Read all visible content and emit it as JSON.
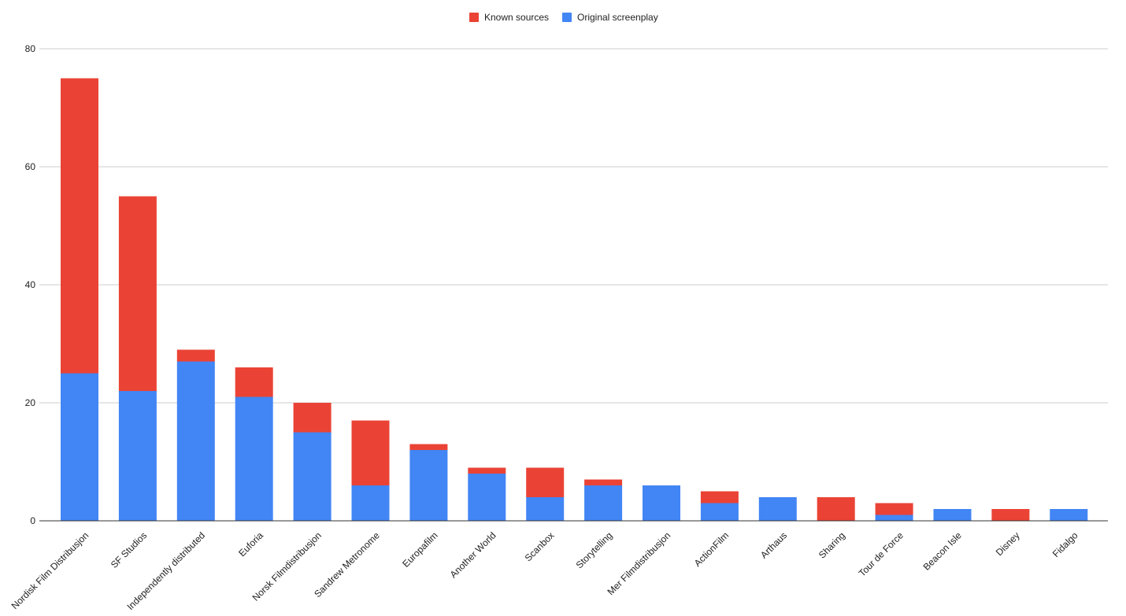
{
  "chart_data": {
    "type": "bar",
    "stacked": true,
    "categories": [
      "Nordisk Film Distribusjon",
      "SF Studios",
      "Independently distributed",
      "Euforia",
      "Norsk Filmdistribusjon",
      "Sandrew Metronome",
      "Europafilm",
      "Another World",
      "Scanbox",
      "Storytelling",
      "Mer Filmdistribusjon",
      "ActionFilm",
      "Arthaus",
      "Sharing",
      "Tour de Force",
      "Beacon Isle",
      "Disney",
      "Fidalgo"
    ],
    "series": [
      {
        "name": "Original screenplay",
        "color": "#4285F4",
        "values": [
          25,
          22,
          27,
          21,
          15,
          6,
          12,
          8,
          4,
          6,
          6,
          3,
          4,
          0,
          1,
          2,
          0,
          2
        ]
      },
      {
        "name": "Known sources",
        "color": "#EA4335",
        "values": [
          50,
          33,
          2,
          5,
          5,
          11,
          1,
          1,
          5,
          1,
          0,
          2,
          0,
          4,
          2,
          0,
          2,
          0
        ]
      }
    ],
    "legend": {
      "position": "top",
      "order": [
        "Known sources",
        "Original screenplay"
      ]
    },
    "yticks": [
      "0",
      "20",
      "40",
      "60",
      "80"
    ],
    "ylim": [
      0,
      80
    ],
    "grid": true
  }
}
